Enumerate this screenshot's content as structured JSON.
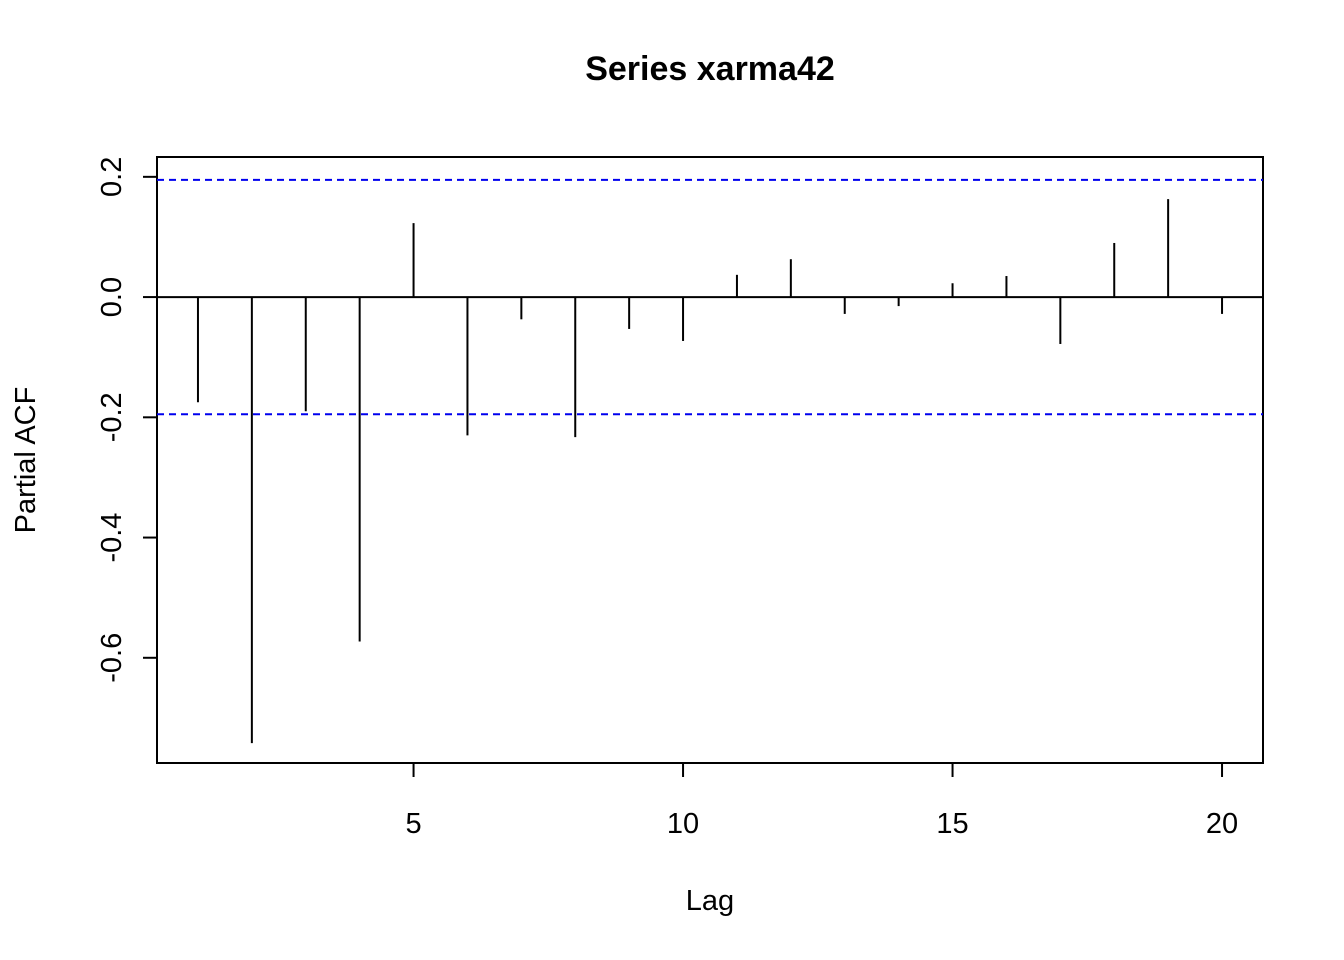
{
  "chart_data": {
    "type": "bar",
    "title": "Series  xarma42",
    "xlabel": "Lag",
    "ylabel": "Partial ACF",
    "x": [
      1,
      2,
      3,
      4,
      5,
      6,
      7,
      8,
      9,
      10,
      11,
      12,
      13,
      14,
      15,
      16,
      17,
      18,
      19,
      20
    ],
    "values": [
      -0.175,
      -0.742,
      -0.19,
      -0.573,
      0.123,
      -0.23,
      -0.037,
      -0.233,
      -0.053,
      -0.073,
      0.037,
      0.063,
      -0.028,
      -0.015,
      0.023,
      0.035,
      -0.078,
      0.09,
      0.163,
      -0.028
    ],
    "xlim": [
      0.24,
      20.76
    ],
    "ylim": [
      -0.775,
      0.233
    ],
    "x_ticks": [
      5,
      10,
      15,
      20
    ],
    "x_tick_labels": [
      "5",
      "10",
      "15",
      "20"
    ],
    "y_ticks": [
      -0.6,
      -0.4,
      -0.2,
      0.0,
      0.2
    ],
    "y_tick_labels": [
      "-0.6",
      "-0.4",
      "-0.2",
      "0.0",
      "0.2"
    ],
    "confidence_bound": 0.195,
    "confidence_color": "#0000ee",
    "bar_color": "#000000",
    "grid": false,
    "legend": "none"
  }
}
